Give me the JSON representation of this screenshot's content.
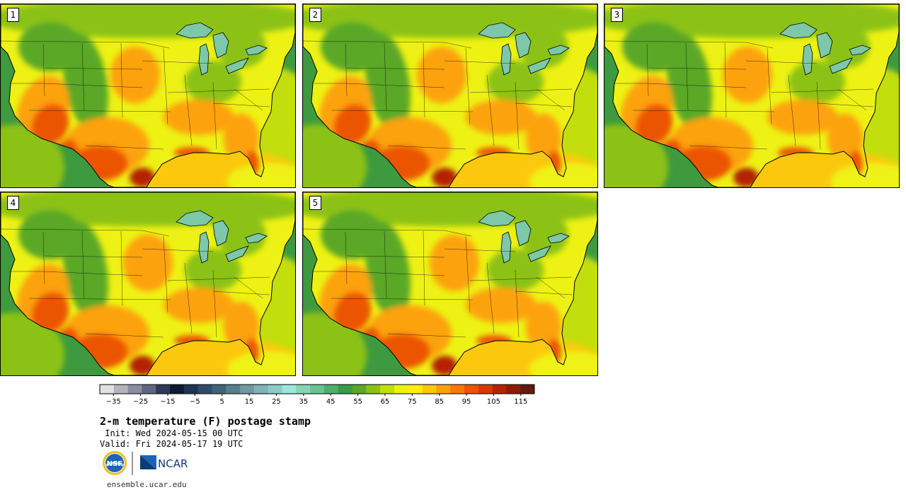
{
  "panels": [
    {
      "label": "1",
      "variant": 0
    },
    {
      "label": "2",
      "variant": 1
    },
    {
      "label": "3",
      "variant": 2
    },
    {
      "label": "4",
      "variant": 3
    },
    {
      "label": "5",
      "variant": 4
    }
  ],
  "colorbar": {
    "colors": [
      "#e1e1e1",
      "#b4b4bd",
      "#8a8e9e",
      "#5e6680",
      "#2c3a58",
      "#0e1a30",
      "#1e3452",
      "#2e4c6a",
      "#3e6478",
      "#567e8c",
      "#6e98a2",
      "#80b2b8",
      "#8ccac8",
      "#9ce6de",
      "#86d6b4",
      "#6cc290",
      "#52ac6e",
      "#3a9a48",
      "#5aa826",
      "#8cc212",
      "#c2de10",
      "#eef214",
      "#fcec10",
      "#fcc80c",
      "#fca208",
      "#f87a04",
      "#ec5402",
      "#d63a02",
      "#b42204",
      "#8e1a08",
      "#621a10"
    ],
    "ticks": [
      -35,
      -25,
      -15,
      -5,
      5,
      15,
      25,
      35,
      45,
      55,
      65,
      75,
      85,
      95,
      105,
      115
    ],
    "min": -40,
    "max": 120
  },
  "text": {
    "title": "2-m temperature (F) postage stamp",
    "init": " Init: Wed 2024-05-15 00 UTC",
    "valid": "Valid: Fri 2024-05-17 19 UTC",
    "website": "ensemble.ucar.edu",
    "nsf_logo": "NSF",
    "ncar_logo": "NCAR"
  },
  "map_colors": {
    "ocean_west": "#3e9a3e",
    "ocean_pacific_south": "#8cc212",
    "atlantic": "#c2de10",
    "gulf": "#fcc80c",
    "land_base": "#eef214",
    "cool_north": "#8cc212",
    "mountains": "#5aa826",
    "warm": "#fca208",
    "hot": "#ec5402",
    "hottest": "#b42204",
    "lakes": "#7cc8a8",
    "canada": "#3a9a48"
  },
  "icons": {
    "nsf": "nsf-logo-icon",
    "ncar": "ncar-logo-icon"
  }
}
